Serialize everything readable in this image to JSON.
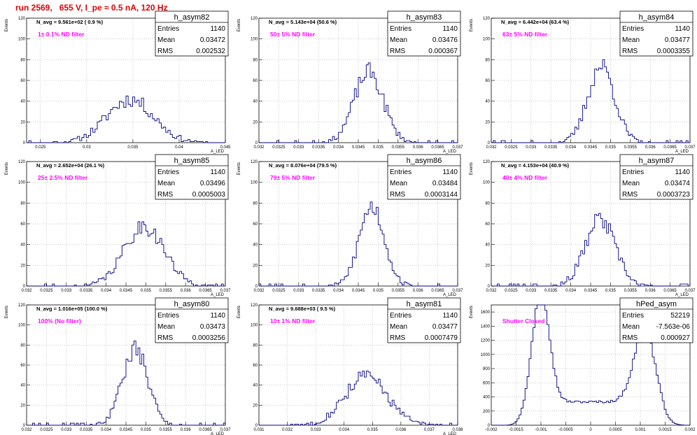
{
  "page_title": "run 2569,   655 V, I_pe ≈ 0.5 nA, 120 Hz",
  "colors": {
    "title": "#e00000",
    "annotation": "#ff00ff",
    "histogram": "#000080",
    "grid": "#999999"
  },
  "chart_data": [
    {
      "type": "histogram",
      "name": "h_asym82",
      "navg_label": "N_avg = 9.561e+02 ( 0.9 %)",
      "filter_label": "1± 0.1% ND filter",
      "stats": [
        {
          "label": "Entries",
          "value": "1140"
        },
        {
          "label": "Mean",
          "value": "0.03472"
        },
        {
          "label": "RMS",
          "value": "0.002532"
        }
      ],
      "ylabel": "Events",
      "xlabel": "A_LED",
      "xlim": [
        0.0235,
        0.045
      ],
      "ylim": [
        0,
        120
      ],
      "xticks": [
        0.025,
        0.03,
        0.035,
        0.04,
        0.045
      ],
      "xtick_labels": [
        "0.025",
        "0.03",
        "0.035",
        "0.04",
        "0.045"
      ],
      "yticks": [
        0,
        20,
        40,
        60,
        80,
        100,
        120
      ],
      "mean": 0.03472,
      "rms": 0.002532,
      "peak": 42,
      "bins": 90,
      "seed": 11,
      "grid": true
    },
    {
      "type": "histogram",
      "name": "h_asym83",
      "navg_label": "N_avg = 5.143e+04 (50.6 %)",
      "filter_label": "50± 5% ND filter",
      "stats": [
        {
          "label": "Entries",
          "value": "1140"
        },
        {
          "label": "Mean",
          "value": "0.03476"
        },
        {
          "label": "RMS",
          "value": "0.000367"
        }
      ],
      "ylabel": "Events",
      "xlabel": "A_LED",
      "xlim": [
        0.032,
        0.037
      ],
      "ylim": [
        0,
        120
      ],
      "xticks": [
        0.032,
        0.0325,
        0.033,
        0.0335,
        0.034,
        0.0345,
        0.035,
        0.0355,
        0.036,
        0.0365,
        0.037
      ],
      "xtick_labels": [
        "0.032",
        "0.0325",
        "0.033",
        "0.0335",
        "0.034",
        "0.0345",
        "0.035",
        "0.0355",
        "0.036",
        "0.0365",
        "0.037"
      ],
      "yticks": [
        0,
        20,
        40,
        60,
        80,
        100,
        120
      ],
      "mean": 0.03476,
      "rms": 0.000367,
      "peak": 68,
      "bins": 100,
      "seed": 23,
      "grid": true
    },
    {
      "type": "histogram",
      "name": "h_asym84",
      "navg_label": "N_avg = 6.442e+04 (63.4 %)",
      "filter_label": "63± 5% ND filter",
      "stats": [
        {
          "label": "Entries",
          "value": "1140"
        },
        {
          "label": "Mean",
          "value": "0.03477"
        },
        {
          "label": "RMS",
          "value": "0.0003355"
        }
      ],
      "ylabel": "Events",
      "xlabel": "A_LED",
      "xlim": [
        0.032,
        0.037
      ],
      "ylim": [
        0,
        120
      ],
      "xticks": [
        0.032,
        0.0325,
        0.033,
        0.0335,
        0.034,
        0.0345,
        0.035,
        0.0355,
        0.036,
        0.0365,
        0.037
      ],
      "xtick_labels": [
        "0.032",
        "0.0325",
        "0.033",
        "0.0335",
        "0.034",
        "0.0345",
        "0.035",
        "0.0355",
        "0.036",
        "0.0365",
        "0.037"
      ],
      "yticks": [
        0,
        20,
        40,
        60,
        80,
        100,
        120
      ],
      "mean": 0.03477,
      "rms": 0.0003355,
      "peak": 74,
      "bins": 100,
      "seed": 37,
      "grid": true
    },
    {
      "type": "histogram",
      "name": "h_asym85",
      "navg_label": "N_avg = 2.652e+04 (26.1 %)",
      "filter_label": "25± 2.5% ND filter",
      "stats": [
        {
          "label": "Entries",
          "value": "1140"
        },
        {
          "label": "Mean",
          "value": "0.03496"
        },
        {
          "label": "RMS",
          "value": "0.0005003"
        }
      ],
      "ylabel": "Events",
      "xlabel": "A_LED",
      "xlim": [
        0.032,
        0.037
      ],
      "ylim": [
        0,
        120
      ],
      "xticks": [
        0.032,
        0.0325,
        0.033,
        0.0335,
        0.034,
        0.0345,
        0.035,
        0.0355,
        0.036,
        0.0365,
        0.037
      ],
      "xtick_labels": [
        "0.032",
        "0.0325",
        "0.033",
        "0.0335",
        "0.034",
        "0.0345",
        "0.035",
        "0.0355",
        "0.036",
        "0.0365",
        "0.037"
      ],
      "yticks": [
        0,
        20,
        40,
        60,
        80,
        100,
        120
      ],
      "mean": 0.03496,
      "rms": 0.0005003,
      "peak": 58,
      "bins": 100,
      "seed": 41,
      "grid": true
    },
    {
      "type": "histogram",
      "name": "h_asym86",
      "navg_label": "N_avg = 8.076e+04 (79.5 %)",
      "filter_label": "79± 5% ND filter",
      "stats": [
        {
          "label": "Entries",
          "value": "1140"
        },
        {
          "label": "Mean",
          "value": "0.03484"
        },
        {
          "label": "RMS",
          "value": "0.0003144"
        }
      ],
      "ylabel": "Events",
      "xlabel": "A_LED",
      "xlim": [
        0.032,
        0.037
      ],
      "ylim": [
        0,
        120
      ],
      "xticks": [
        0.032,
        0.0325,
        0.033,
        0.0335,
        0.034,
        0.0345,
        0.035,
        0.0355,
        0.036,
        0.0365,
        0.037
      ],
      "xtick_labels": [
        "0.032",
        "0.0325",
        "0.033",
        "0.0335",
        "0.034",
        "0.0345",
        "0.035",
        "0.0355",
        "0.036",
        "0.0365",
        "0.037"
      ],
      "yticks": [
        0,
        20,
        40,
        60,
        80,
        100,
        120
      ],
      "mean": 0.03484,
      "rms": 0.0003144,
      "peak": 77,
      "bins": 100,
      "seed": 53,
      "grid": true
    },
    {
      "type": "histogram",
      "name": "h_asym87",
      "navg_label": "N_avg = 4.153e+04 (40.9 %)",
      "filter_label": "40± 4% ND filter",
      "stats": [
        {
          "label": "Entries",
          "value": "1140"
        },
        {
          "label": "Mean",
          "value": "0.03474"
        },
        {
          "label": "RMS",
          "value": "0.0003723"
        }
      ],
      "ylabel": "Events",
      "xlabel": "A_LED",
      "xlim": [
        0.032,
        0.037
      ],
      "ylim": [
        0,
        120
      ],
      "xticks": [
        0.032,
        0.0325,
        0.033,
        0.0335,
        0.034,
        0.0345,
        0.035,
        0.0355,
        0.036,
        0.0365,
        0.037
      ],
      "xtick_labels": [
        "0.032",
        "0.0325",
        "0.033",
        "0.0335",
        "0.034",
        "0.0345",
        "0.035",
        "0.0355",
        "0.036",
        "0.0365",
        "0.037"
      ],
      "yticks": [
        0,
        20,
        40,
        60,
        80,
        100,
        120
      ],
      "mean": 0.03474,
      "rms": 0.0003723,
      "peak": 64,
      "bins": 100,
      "seed": 67,
      "grid": true
    },
    {
      "type": "histogram",
      "name": "h_asym80",
      "navg_label": "N_avg = 1.016e+05 (100.0 %)",
      "filter_label": "100% (No filter)",
      "stats": [
        {
          "label": "Entries",
          "value": "1140"
        },
        {
          "label": "Mean",
          "value": "0.03473"
        },
        {
          "label": "RMS",
          "value": "0.0003256"
        }
      ],
      "ylabel": "Events",
      "xlabel": "A_LED",
      "xlim": [
        0.032,
        0.037
      ],
      "ylim": [
        0,
        120
      ],
      "xticks": [
        0.032,
        0.0325,
        0.033,
        0.0335,
        0.034,
        0.0345,
        0.035,
        0.0355,
        0.036,
        0.0365,
        0.037
      ],
      "xtick_labels": [
        "0.032",
        "0.0325",
        "0.033",
        "0.0335",
        "0.034",
        "0.0345",
        "0.035",
        "0.0355",
        "0.036",
        "0.0365",
        "0.037"
      ],
      "yticks": [
        0,
        20,
        40,
        60,
        80,
        100,
        120
      ],
      "mean": 0.03473,
      "rms": 0.0003256,
      "peak": 75,
      "bins": 100,
      "seed": 79,
      "grid": true
    },
    {
      "type": "histogram",
      "name": "h_asym81",
      "navg_label": "N_avg = 9.688e+03 ( 9.5 %)",
      "filter_label": "10± 1% ND filter",
      "stats": [
        {
          "label": "Entries",
          "value": "1140"
        },
        {
          "label": "Mean",
          "value": "0.03477"
        },
        {
          "label": "RMS",
          "value": "0.0007479"
        }
      ],
      "ylabel": "Events",
      "xlabel": "A_LED",
      "xlim": [
        0.031,
        0.038
      ],
      "ylim": [
        0,
        120
      ],
      "xticks": [
        0.031,
        0.032,
        0.033,
        0.034,
        0.035,
        0.036,
        0.037,
        0.038
      ],
      "xtick_labels": [
        "0.031",
        "0.032",
        "0.033",
        "0.034",
        "0.035",
        "0.036",
        "0.037",
        "0.038"
      ],
      "yticks": [
        0,
        20,
        40,
        60,
        80,
        100,
        120
      ],
      "mean": 0.03477,
      "rms": 0.0007479,
      "peak": 49,
      "bins": 100,
      "seed": 83,
      "grid": true
    },
    {
      "type": "histogram",
      "name": "hPed_asym",
      "navg_label": "",
      "filter_label": "Shutter Closed",
      "stats": [
        {
          "label": "Entries",
          "value": "52219"
        },
        {
          "label": "Mean",
          "value": "-7.563e-06"
        },
        {
          "label": "RMS",
          "value": "0.000927"
        }
      ],
      "ylabel": "Events",
      "xlabel": "",
      "xlim": [
        -0.002,
        0.002
      ],
      "ylim": [
        0,
        1700
      ],
      "xticks": [
        -0.002,
        -0.0015,
        -0.001,
        -0.0005,
        0,
        0.0005,
        0.001,
        0.0015,
        0.002
      ],
      "xtick_labels": [
        "-0.002",
        "-0.0015",
        "-0.001",
        "-0.0005",
        "0",
        "0.0005",
        "0.001",
        "0.0015",
        "0.002"
      ],
      "yticks": [
        0,
        200,
        400,
        600,
        800,
        1000,
        1200,
        1400,
        1600
      ],
      "peaks": [
        {
          "center": -0.001,
          "width": 0.00017,
          "height": 1650
        },
        {
          "center": 0.0011,
          "width": 0.00022,
          "height": 1060
        }
      ],
      "floor": 330,
      "bins": 100,
      "seed": 97,
      "grid": true
    }
  ]
}
